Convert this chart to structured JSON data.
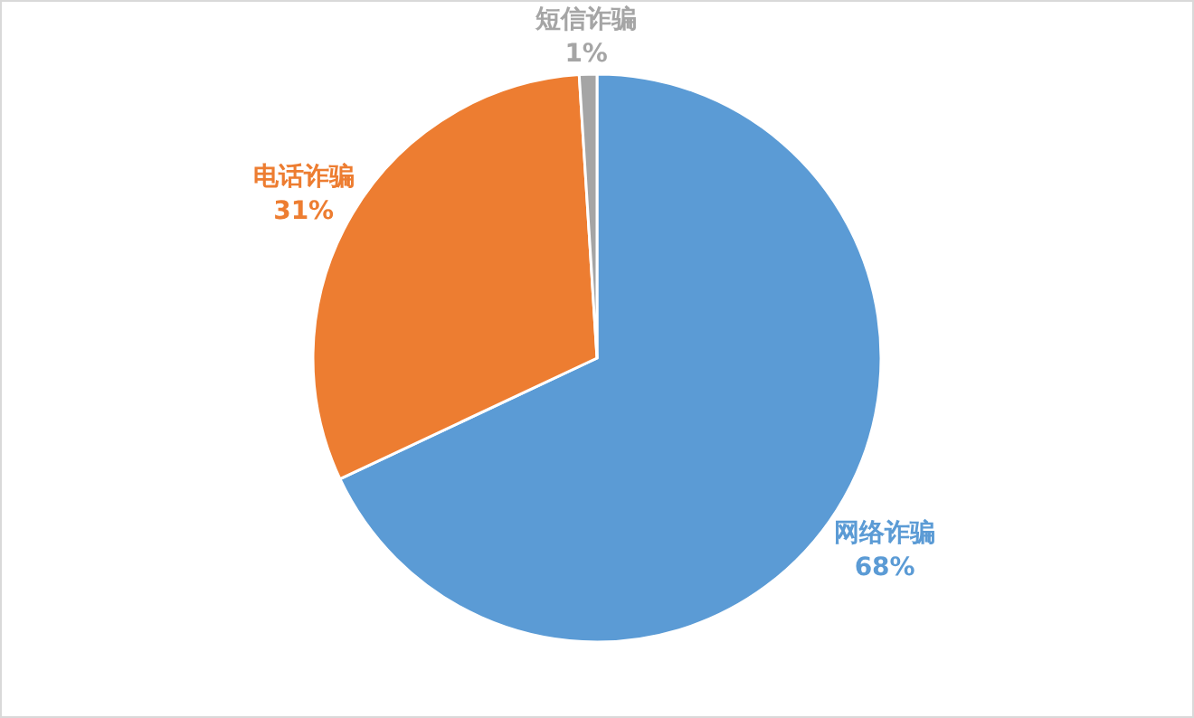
{
  "chart_data": {
    "type": "pie",
    "categories": [
      "网络诈骗",
      "电话诈骗",
      "短信诈骗"
    ],
    "values": [
      68,
      31,
      1
    ],
    "colors": [
      "#5b9bd5",
      "#ed7d31",
      "#a5a5a5"
    ],
    "value_labels": [
      "68%",
      "31%",
      "1%"
    ],
    "legend": false
  }
}
